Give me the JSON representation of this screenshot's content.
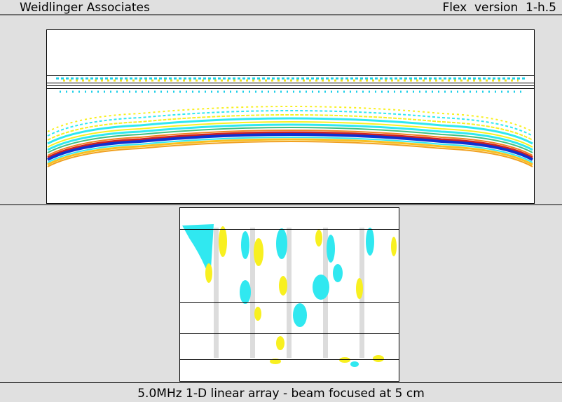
{
  "header": {
    "left": "Weidlinger Associates",
    "right": "Flex  version  1-h.5"
  },
  "footer": {
    "caption": "5.0MHz 1-D linear array - beam focused at 5 cm"
  }
}
